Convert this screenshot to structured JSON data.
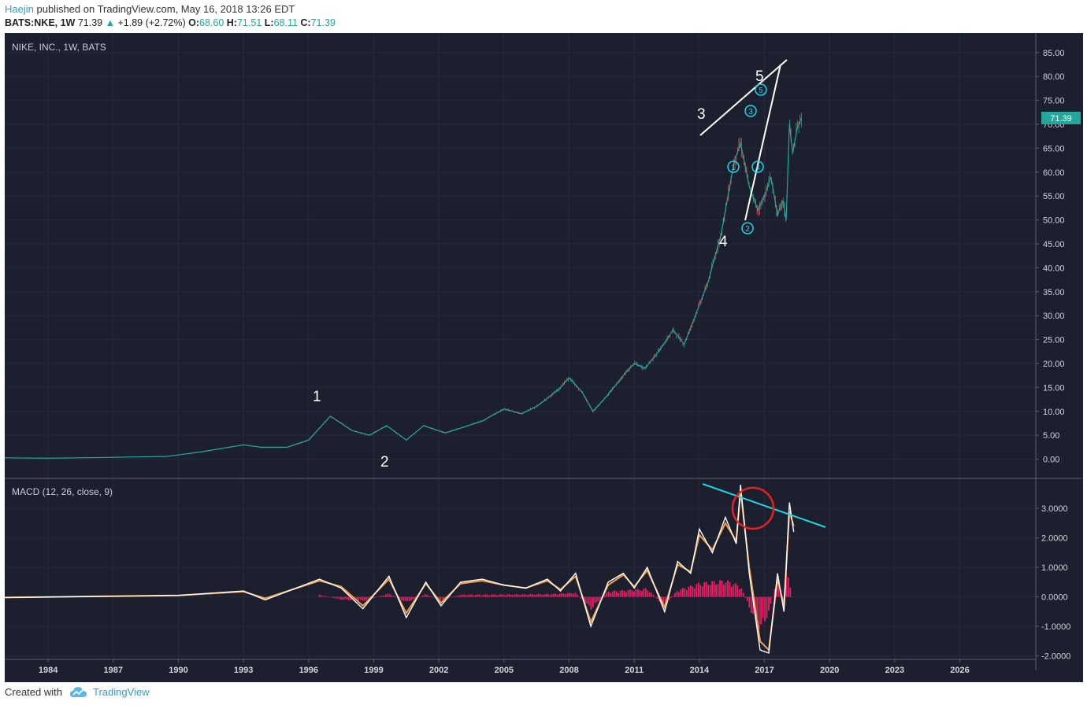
{
  "header": {
    "author": "Haejin",
    "published_text": "published on TradingView.com, May 16, 2018 13:26 EDT",
    "symbol": "BATS:NKE, 1W",
    "last": "71.39",
    "change": "+1.89 (+2.72%)",
    "open_label": "O:",
    "open": "68.60",
    "high_label": "H:",
    "high": "71.51",
    "low_label": "L:",
    "low": "68.11",
    "close_label": "C:",
    "close": "71.39"
  },
  "footer": {
    "created_with": "Created with",
    "brand": "TradingView"
  },
  "colors": {
    "background": "#1b1f2e",
    "up_candle": "#26a69a",
    "down_candle": "#ef5350",
    "macd_line": "#ffffff",
    "signal_line": "#f5a04a",
    "histogram": "#e91e63",
    "trendline": "#22d3e6",
    "highlight_circle": "#e52222",
    "price_tag": "#26a69a"
  },
  "chart_data": [
    {
      "type": "line",
      "title": "NIKE, INC., 1W, BATS",
      "last_price_label": "71.39",
      "x_ticks": [
        "1984",
        "1987",
        "1990",
        "1993",
        "1996",
        "1999",
        "2002",
        "2005",
        "2008",
        "2011",
        "2014",
        "2017",
        "2020",
        "2023",
        "2026"
      ],
      "y_ticks": [
        "85.00",
        "80.00",
        "75.00",
        "70.00",
        "65.00",
        "60.00",
        "55.00",
        "50.00",
        "45.00",
        "40.00",
        "35.00",
        "30.00",
        "25.00",
        "20.00",
        "15.00",
        "10.00",
        "5.00",
        "0.00"
      ],
      "ylim": [
        -2,
        87
      ],
      "xlim": [
        1982.0,
        2029.5
      ],
      "x": [
        1982.0,
        1984.0,
        1987.0,
        1989.5,
        1991.0,
        1993.0,
        1993.8,
        1995.0,
        1996.0,
        1997.0,
        1998.0,
        1998.8,
        1999.6,
        2000.5,
        2001.3,
        2002.3,
        2003.0,
        2004.0,
        2005.0,
        2005.8,
        2006.5,
        2007.5,
        2008.0,
        2008.6,
        2009.1,
        2009.8,
        2010.5,
        2011.0,
        2011.5,
        2012.2,
        2012.8,
        2013.3,
        2013.9,
        2014.4,
        2015.0,
        2015.6,
        2015.9,
        2016.3,
        2016.7,
        2017.0,
        2017.3,
        2017.6,
        2017.85,
        2018.0,
        2018.15,
        2018.3,
        2018.5,
        2018.7
      ],
      "y": [
        0.3,
        0.2,
        0.4,
        0.6,
        1.5,
        3.0,
        2.5,
        2.5,
        4.0,
        9.0,
        6.0,
        5.0,
        7.0,
        4.0,
        7.0,
        5.5,
        6.5,
        8.0,
        10.5,
        9.5,
        11.0,
        14.5,
        17.0,
        14.0,
        10.0,
        13.5,
        17.5,
        20.0,
        19.0,
        23.0,
        27.0,
        24.0,
        31.0,
        37.0,
        47.0,
        62.0,
        66.0,
        57.0,
        52.0,
        55.0,
        59.0,
        51.0,
        54.0,
        50.0,
        70.0,
        64.0,
        69.0,
        71.4
      ]
    },
    {
      "type": "line",
      "title": "MACD (12, 26, close, 9)",
      "y_ticks": [
        "3.0000",
        "2.0000",
        "1.0000",
        "0.0000",
        "-1.0000",
        "-2.0000"
      ],
      "ylim": [
        -2.1,
        3.9
      ],
      "series": [
        {
          "x": [
            1982.0,
            1990.0,
            1993.0,
            1994.0,
            1996.5,
            1997.5,
            1998.5,
            1999.7,
            2000.5,
            2001.4,
            2002.1,
            2003.0,
            2004.0,
            2005.0,
            2006.0,
            2007.0,
            2007.6,
            2008.3,
            2009.0,
            2009.8,
            2010.5,
            2011.0,
            2011.6,
            2012.4,
            2013.0,
            2013.6,
            2014.0,
            2014.6,
            2015.2,
            2015.7,
            2015.9,
            2016.3,
            2016.8,
            2017.2,
            2017.6,
            2017.9,
            2018.15,
            2018.35
          ],
          "y": [
            -0.02,
            0.05,
            0.2,
            -0.1,
            0.6,
            0.3,
            -0.4,
            0.7,
            -0.7,
            0.5,
            -0.3,
            0.5,
            0.6,
            0.4,
            0.3,
            0.6,
            0.2,
            0.8,
            -1.0,
            0.5,
            0.8,
            0.3,
            1.0,
            -0.5,
            1.2,
            0.8,
            2.3,
            1.5,
            2.7,
            1.8,
            3.8,
            0.8,
            -1.8,
            -1.9,
            0.8,
            -0.5,
            3.2,
            2.2
          ]
        },
        {
          "x": [
            1982.0,
            1990.0,
            1993.0,
            1994.0,
            1996.5,
            1997.5,
            1998.5,
            1999.7,
            2000.5,
            2001.4,
            2002.1,
            2003.0,
            2004.0,
            2005.0,
            2006.0,
            2007.0,
            2007.6,
            2008.3,
            2009.0,
            2009.8,
            2010.5,
            2011.0,
            2011.6,
            2012.4,
            2013.0,
            2013.6,
            2014.0,
            2014.6,
            2015.2,
            2015.7,
            2015.9,
            2016.3,
            2016.8,
            2017.2,
            2017.6,
            2017.9,
            2018.15,
            2018.35
          ],
          "y": [
            -0.02,
            0.05,
            0.18,
            -0.05,
            0.55,
            0.35,
            -0.3,
            0.6,
            -0.55,
            0.45,
            -0.2,
            0.45,
            0.55,
            0.4,
            0.3,
            0.55,
            0.25,
            0.7,
            -0.85,
            0.4,
            0.75,
            0.35,
            0.9,
            -0.35,
            1.1,
            0.85,
            2.1,
            1.6,
            2.5,
            1.9,
            3.6,
            1.0,
            -1.5,
            -1.8,
            0.6,
            -0.3,
            2.9,
            2.4
          ]
        },
        {
          "x": [
            1996.5,
            1997.5,
            1998.5,
            1999.7,
            2000.5,
            2001.4,
            2002.1,
            2003.0,
            2007.0,
            2008.3,
            2009.0,
            2009.8,
            2011.6,
            2012.4,
            2013.0,
            2014.0,
            2015.2,
            2015.9,
            2016.3,
            2016.8,
            2017.2,
            2017.6,
            2017.9,
            2018.0,
            2018.15,
            2018.35
          ],
          "y": [
            0.08,
            -0.1,
            -0.15,
            0.12,
            -0.2,
            0.1,
            -0.12,
            0.08,
            0.1,
            0.15,
            -0.45,
            0.2,
            0.3,
            -0.35,
            0.25,
            0.5,
            0.6,
            0.4,
            -0.4,
            -1.2,
            -0.6,
            0.7,
            -0.3,
            1.0,
            0.5,
            -0.3
          ]
        }
      ]
    }
  ],
  "annotations": {
    "wave_labels": [
      "1",
      "2",
      "3",
      "4",
      "5"
    ],
    "subwave_labels": [
      "1",
      "2",
      "3",
      "4",
      "5"
    ]
  }
}
